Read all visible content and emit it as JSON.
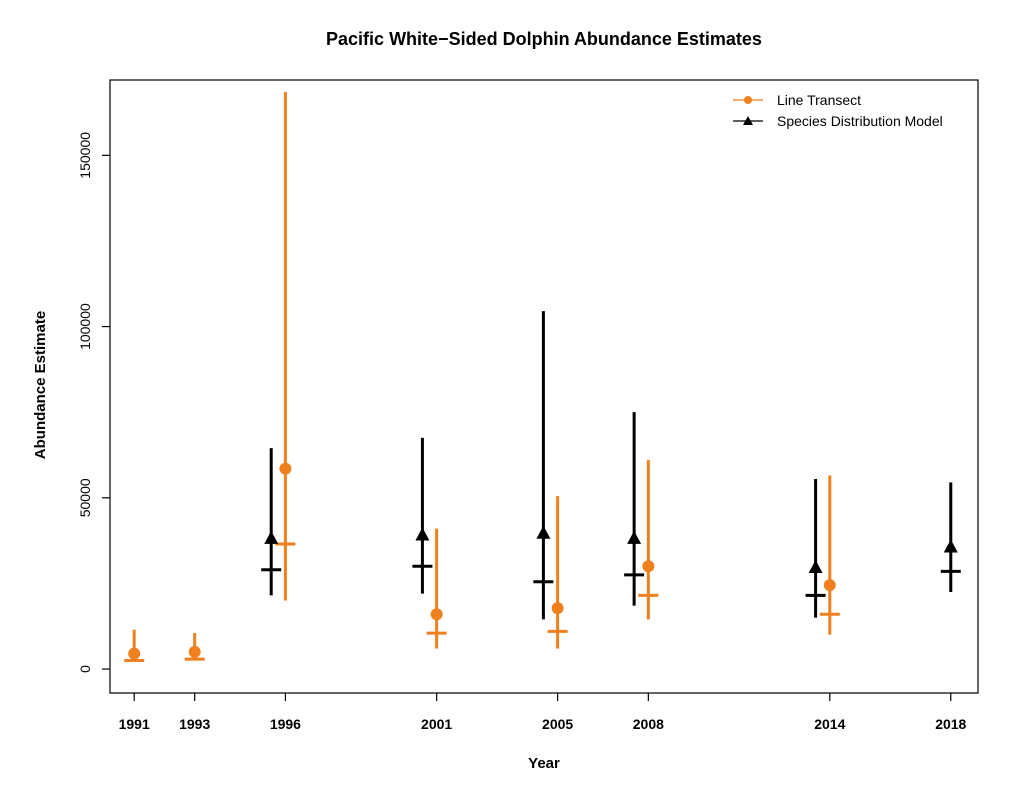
{
  "chart_data": {
    "type": "scatter",
    "title": "Pacific White−Sided Dolphin Abundance Estimates",
    "xlabel": "Year",
    "ylabel": "Abundance Estimate",
    "ylim": [
      -7000,
      172000
    ],
    "xlim": [
      1990.2,
      2018.9
    ],
    "x_ticks": [
      1991,
      1993,
      1996,
      2001,
      2005,
      2008,
      2014,
      2018
    ],
    "y_ticks": [
      0,
      50000,
      100000,
      150000
    ],
    "grid": false,
    "legend_position": "top-right",
    "colors": {
      "line_transect": "#F07F1E",
      "sdm": "#000000"
    },
    "series": [
      {
        "name": "Line Transect",
        "marker": "circle",
        "color": "#F07F1E",
        "points": [
          {
            "year": 1991,
            "estimate": 4500,
            "lower": 2500,
            "upper": 11500,
            "min_estimate": 2500
          },
          {
            "year": 1993,
            "estimate": 5000,
            "lower": 2700,
            "upper": 10500,
            "min_estimate": 2900
          },
          {
            "year": 1996,
            "estimate": 58500,
            "lower": 20000,
            "upper": 168500,
            "min_estimate": 36500
          },
          {
            "year": 2001,
            "estimate": 16000,
            "lower": 6000,
            "upper": 41000,
            "min_estimate": 10500
          },
          {
            "year": 2005,
            "estimate": 17800,
            "lower": 6000,
            "upper": 50500,
            "min_estimate": 11000
          },
          {
            "year": 2008,
            "estimate": 30000,
            "lower": 14500,
            "upper": 61000,
            "min_estimate": 21500
          },
          {
            "year": 2014,
            "estimate": 24500,
            "lower": 10000,
            "upper": 56500,
            "min_estimate": 16000
          }
        ]
      },
      {
        "name": "Species Distribution Model",
        "marker": "triangle",
        "color": "#000000",
        "points": [
          {
            "year": 1996,
            "estimate": 38000,
            "lower": 21500,
            "upper": 64500,
            "min_estimate": 29000
          },
          {
            "year": 2001,
            "estimate": 39000,
            "lower": 22000,
            "upper": 67500,
            "min_estimate": 30000
          },
          {
            "year": 2005,
            "estimate": 39500,
            "lower": 14500,
            "upper": 104500,
            "min_estimate": 25500
          },
          {
            "year": 2008,
            "estimate": 38000,
            "lower": 18500,
            "upper": 75000,
            "min_estimate": 27500
          },
          {
            "year": 2014,
            "estimate": 29500,
            "lower": 15000,
            "upper": 55500,
            "min_estimate": 21500
          },
          {
            "year": 2018,
            "estimate": 35500,
            "lower": 22500,
            "upper": 54500,
            "min_estimate": 28500
          }
        ]
      }
    ]
  }
}
